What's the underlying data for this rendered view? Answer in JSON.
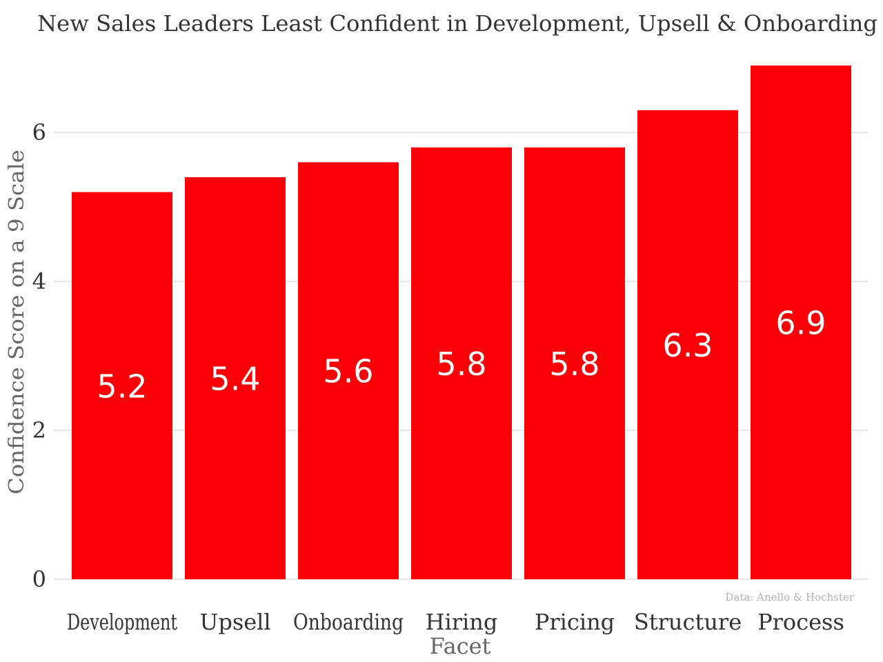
{
  "chart_data": {
    "type": "bar",
    "title": "New Sales Leaders Least Confident in Development, Upsell & Onboarding",
    "xlabel": "Facet",
    "ylabel": "Confidence Score on a 9 Scale",
    "caption": "Data: Anello & Hochster",
    "categories": [
      "Development",
      "Upsell",
      "Onboarding",
      "Hiring",
      "Pricing",
      "Structure",
      "Process"
    ],
    "values": [
      5.2,
      5.4,
      5.6,
      5.8,
      5.8,
      6.3,
      6.9
    ],
    "value_labels": [
      "5.2",
      "5.4",
      "5.6",
      "5.8",
      "5.8",
      "6.3",
      "6.9"
    ],
    "yticks": [
      0,
      2,
      4,
      6
    ],
    "ytick_labels": [
      "0",
      "2",
      "4",
      "6"
    ],
    "ylim": [
      0,
      6.9
    ],
    "grid": true,
    "legend": "none",
    "colors": {
      "bar": "#f90007",
      "grid": "#d0d0d0",
      "text": "#333333",
      "axis_label": "#666666",
      "caption": "#b3b3b3",
      "value_label": "#ffffff"
    }
  }
}
